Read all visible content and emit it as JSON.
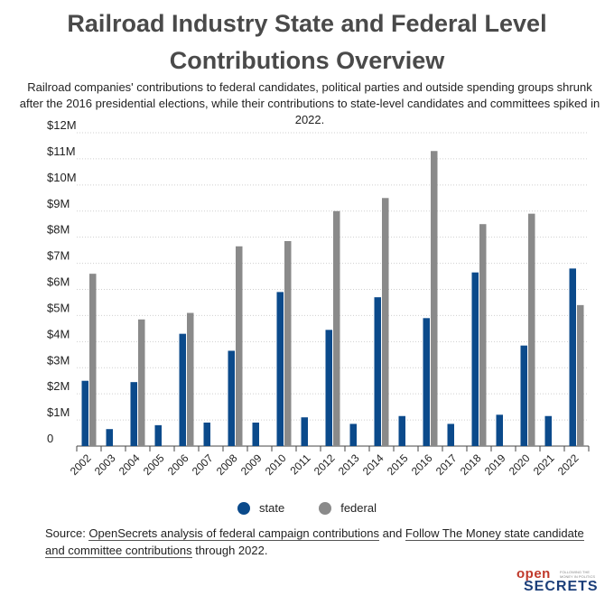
{
  "title": "Railroad Industry State and Federal Level Contributions Overview",
  "subtitle": "Railroad companies' contributions to federal candidates, political parties and outside spending groups shrunk after the 2016 presidential elections, while their contributions to state-level candidates and committees spiked in 2022.",
  "colors": {
    "state": "#0b4a8b",
    "federal": "#8a8a8a",
    "grid": "#cfcfcf",
    "axis": "#444444"
  },
  "chart_data": {
    "type": "bar",
    "categories": [
      "2002",
      "2003",
      "2004",
      "2005",
      "2006",
      "2007",
      "2008",
      "2009",
      "2010",
      "2011",
      "2012",
      "2013",
      "2014",
      "2015",
      "2016",
      "2017",
      "2018",
      "2019",
      "2020",
      "2021",
      "2022"
    ],
    "series": [
      {
        "name": "state",
        "values": [
          2.5,
          0.65,
          2.45,
          0.8,
          4.3,
          0.9,
          3.65,
          0.9,
          5.9,
          1.1,
          4.45,
          0.85,
          5.7,
          1.15,
          4.9,
          0.85,
          6.65,
          1.2,
          3.85,
          1.15,
          6.8
        ]
      },
      {
        "name": "federal",
        "values": [
          6.6,
          0,
          4.85,
          0,
          5.1,
          0,
          7.65,
          0,
          7.85,
          0,
          9.0,
          0,
          9.5,
          0,
          11.3,
          0,
          8.5,
          0,
          8.9,
          0,
          5.4
        ]
      }
    ],
    "unit": "$M",
    "ylim": [
      0,
      12
    ],
    "yticks": [
      {
        "v": 0,
        "label": "0"
      },
      {
        "v": 1,
        "label": "$1M"
      },
      {
        "v": 2,
        "label": "$2M"
      },
      {
        "v": 3,
        "label": "$3M"
      },
      {
        "v": 4,
        "label": "$4M"
      },
      {
        "v": 5,
        "label": "$5M"
      },
      {
        "v": 6,
        "label": "$6M"
      },
      {
        "v": 7,
        "label": "$7M"
      },
      {
        "v": 8,
        "label": "$8M"
      },
      {
        "v": 9,
        "label": "$9M"
      },
      {
        "v": 10,
        "label": "$10M"
      },
      {
        "v": 11,
        "label": "$11M"
      },
      {
        "v": 12,
        "label": "$12M"
      }
    ],
    "grid": true,
    "legend_position": "bottom-center"
  },
  "legend": {
    "state": "state",
    "federal": "federal"
  },
  "source": {
    "prefix": "Source: ",
    "link1": "OpenSecrets analysis of federal campaign contributions",
    "middle": " and ",
    "link2": "Follow The Money state candidate and committee contributions",
    "suffix": " through 2022."
  },
  "logo": {
    "open": "open",
    "secrets": "SECRETS",
    "tagline": "FOLLOWING THE MONEY IN POLITICS"
  }
}
